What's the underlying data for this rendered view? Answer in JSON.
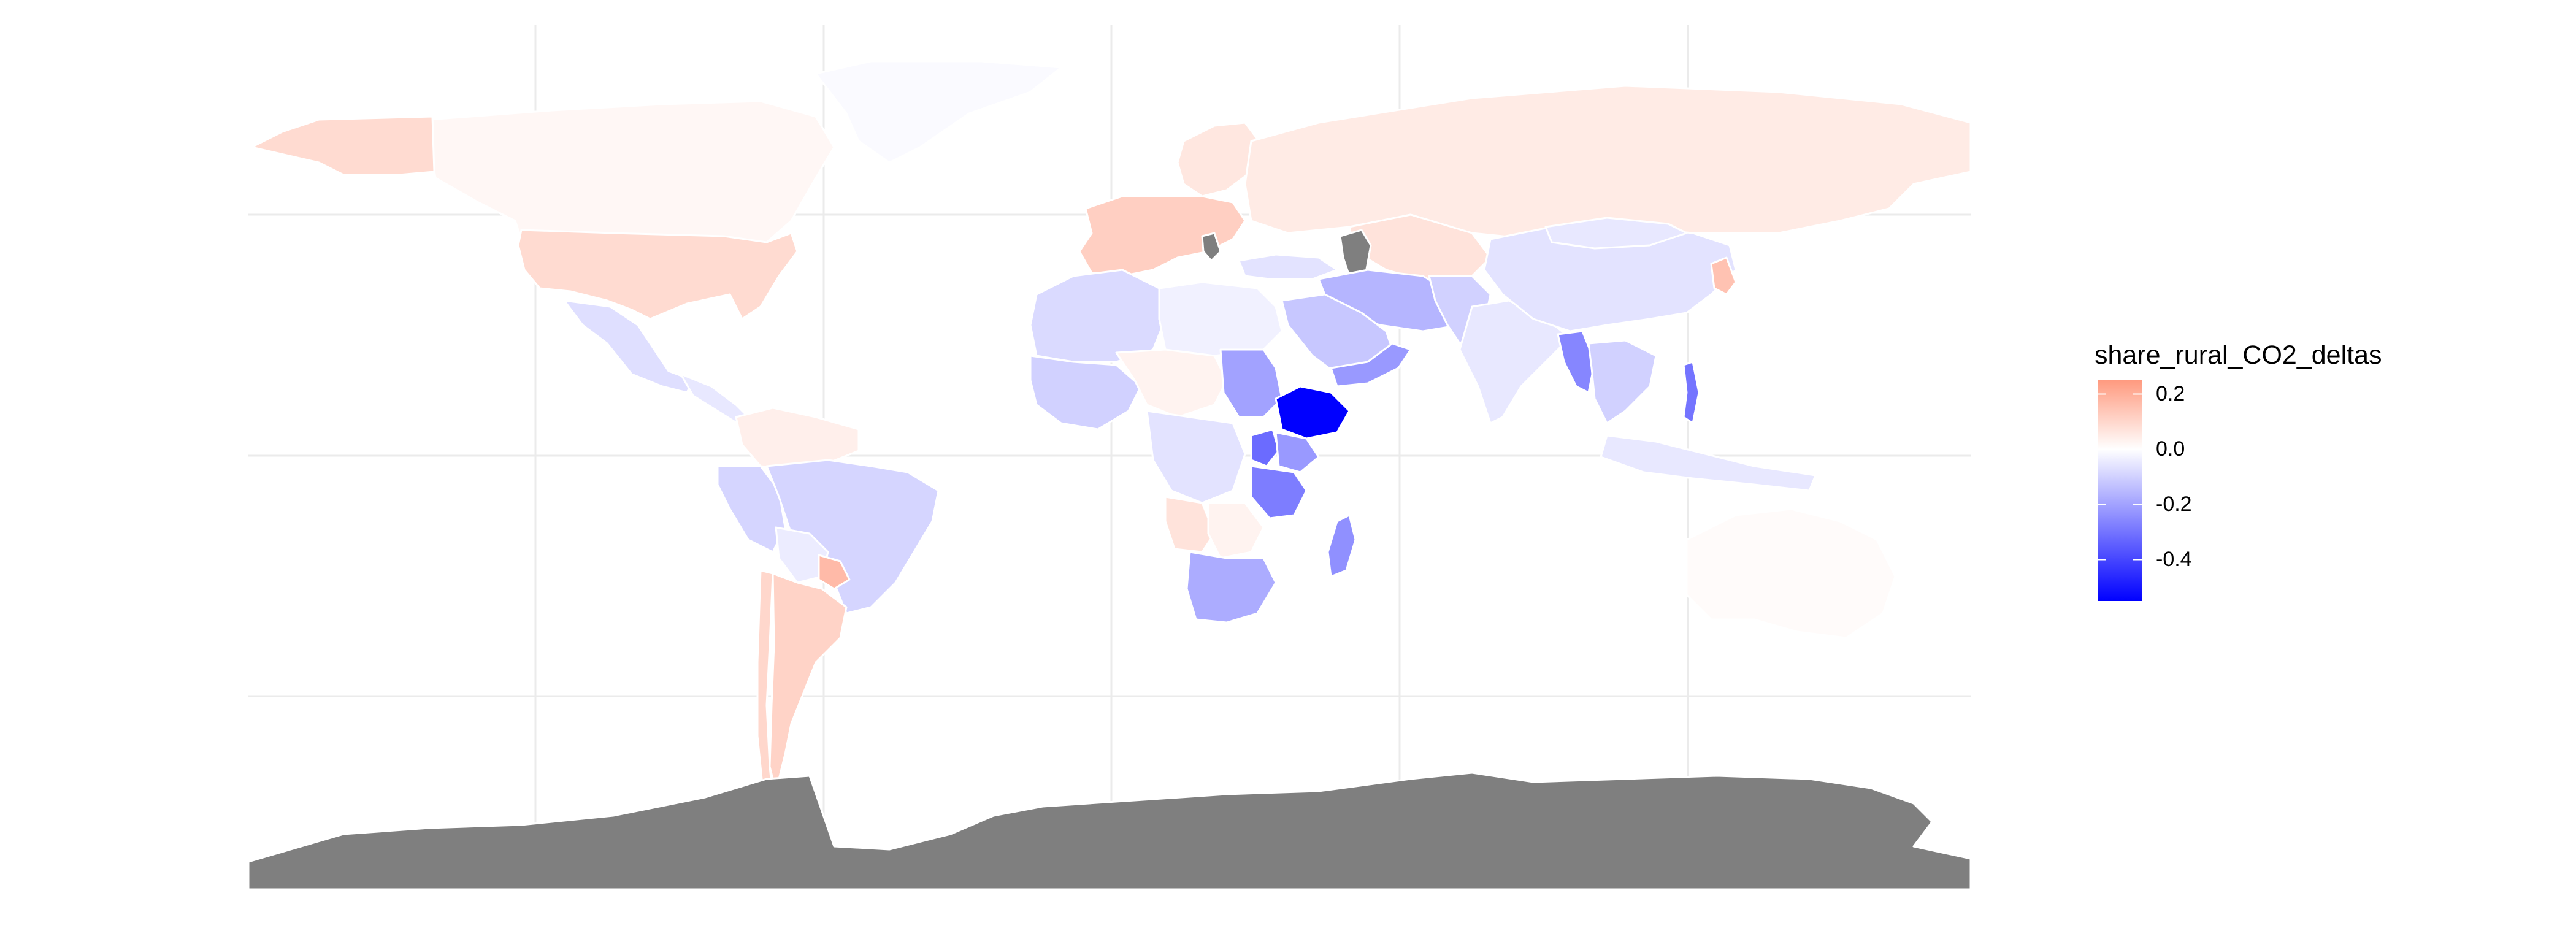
{
  "map": {
    "colors": {
      "background": "#ffffff",
      "grid": "#ebebeb",
      "country_border": "#ffffff",
      "na_fill": "#7f7f7f",
      "low": "#0000ff",
      "mid": "#ffffff",
      "high": "#ff9a7f"
    },
    "fill_variable": "share_rural_CO2_deltas",
    "regions": [
      {
        "name": "Canada",
        "value": 0.02
      },
      {
        "name": "United States",
        "value": 0.09
      },
      {
        "name": "Alaska",
        "value": 0.09
      },
      {
        "name": "Greenland",
        "value": -0.01
      },
      {
        "name": "Mexico",
        "value": -0.07
      },
      {
        "name": "Central America",
        "value": -0.05
      },
      {
        "name": "Colombia / Venezuela",
        "value": 0.04
      },
      {
        "name": "Peru / Ecuador",
        "value": -0.09
      },
      {
        "name": "Brazil",
        "value": -0.09
      },
      {
        "name": "Bolivia",
        "value": -0.04
      },
      {
        "name": "Argentina",
        "value": 0.11
      },
      {
        "name": "Chile",
        "value": 0.1
      },
      {
        "name": "Paraguay",
        "value": 0.17
      },
      {
        "name": "Europe (west)",
        "value": 0.12
      },
      {
        "name": "Scandinavia",
        "value": 0.06
      },
      {
        "name": "Russia",
        "value": 0.05
      },
      {
        "name": "Kazakhstan / Central Asia",
        "value": 0.07
      },
      {
        "name": "Turkey",
        "value": -0.06
      },
      {
        "name": "Caucasus (no data)",
        "value": null
      },
      {
        "name": "Balkans (no data)",
        "value": null
      },
      {
        "name": "Iran / Middle East",
        "value": -0.16
      },
      {
        "name": "Arabia",
        "value": -0.12
      },
      {
        "name": "Yemen / Oman",
        "value": -0.22
      },
      {
        "name": "North Africa (west)",
        "value": -0.08
      },
      {
        "name": "North Africa (east)",
        "value": -0.03
      },
      {
        "name": "West Africa",
        "value": -0.1
      },
      {
        "name": "Sahel",
        "value": 0.03
      },
      {
        "name": "Sudan",
        "value": -0.2
      },
      {
        "name": "Ethiopia",
        "value": -0.55
      },
      {
        "name": "Uganda / Rwanda",
        "value": -0.32
      },
      {
        "name": "Kenya",
        "value": -0.22
      },
      {
        "name": "Tanzania",
        "value": -0.28
      },
      {
        "name": "DR Congo",
        "value": -0.06
      },
      {
        "name": "Angola",
        "value": 0.07
      },
      {
        "name": "Zambia / Zimbabwe",
        "value": 0.03
      },
      {
        "name": "South Africa",
        "value": -0.18
      },
      {
        "name": "Madagascar",
        "value": -0.24
      },
      {
        "name": "India",
        "value": -0.05
      },
      {
        "name": "China",
        "value": -0.06
      },
      {
        "name": "Mongolia",
        "value": -0.05
      },
      {
        "name": "Afghanistan / Pakistan",
        "value": -0.1
      },
      {
        "name": "Myanmar",
        "value": -0.26
      },
      {
        "name": "Southeast Asia",
        "value": -0.1
      },
      {
        "name": "Korea / Japan",
        "value": 0.15
      },
      {
        "name": "Indonesia",
        "value": -0.05
      },
      {
        "name": "Philippines",
        "value": -0.3
      },
      {
        "name": "Australia",
        "value": 0.01
      },
      {
        "name": "Antarctica (no data)",
        "value": null
      }
    ]
  },
  "legend": {
    "title": "share_rural_CO2_deltas",
    "ticks": [
      {
        "label": "0.2",
        "value": 0.2
      },
      {
        "label": "0.0",
        "value": 0.0
      },
      {
        "label": "-0.2",
        "value": -0.2
      },
      {
        "label": "-0.4",
        "value": -0.4
      }
    ],
    "range": [
      -0.55,
      0.25
    ]
  }
}
